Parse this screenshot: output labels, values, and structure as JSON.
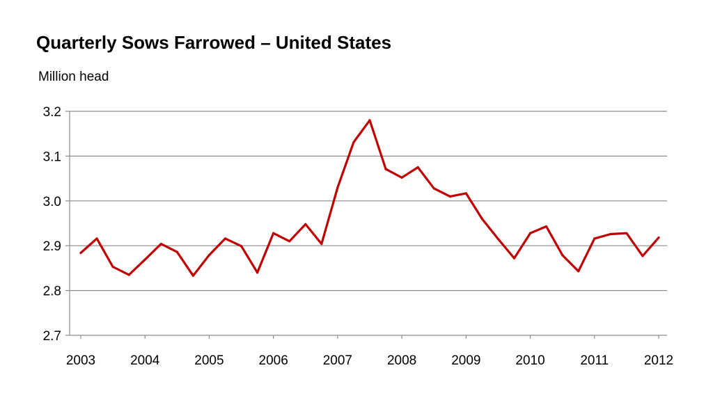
{
  "chart_data": {
    "type": "line",
    "title": "Quarterly Sows Farrowed – United States",
    "subtitle": "Million head",
    "xlabel": "",
    "ylabel": "",
    "ylim": [
      2.7,
      3.2
    ],
    "yticks": [
      "3.2",
      "3.1",
      "3.0",
      "2.9",
      "2.8",
      "2.7"
    ],
    "xticks": [
      "2003",
      "2004",
      "2005",
      "2006",
      "2007",
      "2008",
      "2009",
      "2010",
      "2011",
      "2012"
    ],
    "grid": "horizontal",
    "line_color": "#C00000",
    "series": [
      {
        "values": [
          2.884,
          2.916,
          2.853,
          2.835,
          2.869,
          2.904,
          2.886,
          2.833,
          2.879,
          2.916,
          2.899,
          2.84,
          2.928,
          2.91,
          2.948,
          2.904,
          3.03,
          3.131,
          3.18,
          3.071,
          3.052,
          3.075,
          3.028,
          3.01,
          3.017,
          2.96,
          2.915,
          2.872,
          2.928,
          2.943,
          2.879,
          2.843,
          2.916,
          2.926,
          2.928,
          2.877,
          2.918
        ]
      }
    ]
  }
}
